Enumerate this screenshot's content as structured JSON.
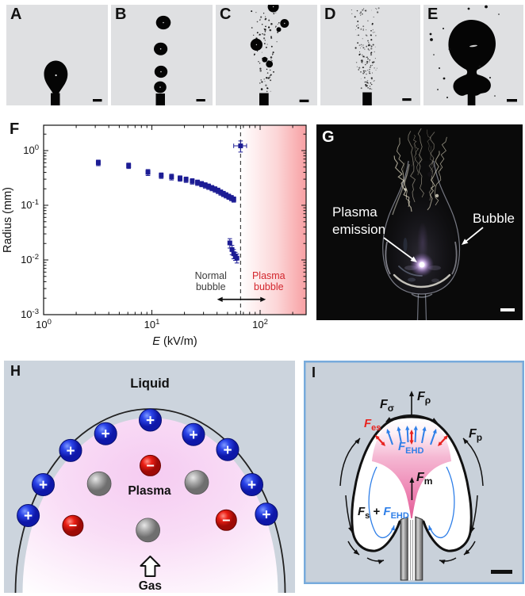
{
  "colors": {
    "photo_bg_gray": "#dfe0e2",
    "ink": "#000000",
    "navy_marker": "#1c1c94",
    "plasma_red": "#d3262d",
    "shade_red": "#ed1c24",
    "schematic_bg": "#ccd4dd",
    "panel_i_border": "#77abdc",
    "blue_charge": "#1733cc",
    "red_charge": "#dd1111",
    "gray_sphere": "#9a9a9a",
    "blue_arrow": "#2f7fe8",
    "pink_cone": "#e75e9f"
  },
  "panels": {
    "a": {
      "label": "A"
    },
    "b": {
      "label": "B"
    },
    "c": {
      "label": "C"
    },
    "d": {
      "label": "D"
    },
    "e": {
      "label": "E"
    },
    "f": {
      "label": "F"
    },
    "g": {
      "label": "G",
      "annotation_plasma_line1": "Plasma",
      "annotation_plasma_line2": "emission",
      "annotation_bubble": "Bubble"
    },
    "h": {
      "label": "H",
      "liquid_label": "Liquid",
      "plasma_label": "Plasma",
      "gas_label": "Gas",
      "plus_symbol": "+",
      "minus_symbol": "−"
    },
    "i": {
      "label": "I",
      "forces": {
        "f_rho": {
          "main": "F",
          "sub": "ρ",
          "color": "#111111"
        },
        "f_sigma": {
          "main": "F",
          "sub": "σ",
          "color": "#111111"
        },
        "f_es": {
          "main": "F",
          "sub": "es",
          "color": "#e8231f"
        },
        "f_ehd": {
          "main": "F",
          "sub": "EHD",
          "color": "#2f7fe8"
        },
        "f_p": {
          "main": "F",
          "sub": "p",
          "color": "#111111"
        },
        "f_m": {
          "main": "F",
          "sub": "m",
          "color": "#111111"
        },
        "f_s": {
          "main": "F",
          "sub": "s",
          "color": "#111111"
        },
        "plus_join": " + "
      }
    }
  },
  "chart_data": {
    "type": "scatter",
    "title": "",
    "xlabel_italic": "E",
    "xlabel_rest": " (kV/m)",
    "ylabel": "Radius (mm)",
    "xscale": "log",
    "yscale": "log",
    "xlim": [
      1,
      266
    ],
    "ylim": [
      0.001,
      2.9
    ],
    "x_tick_exponents": [
      0,
      1,
      2
    ],
    "y_tick_exponents": [
      0,
      -1,
      -2,
      -3
    ],
    "tick_base": "10",
    "series": [
      {
        "name": "normal-bubble-radius",
        "marker": "square",
        "color": "#1c1c94",
        "x": [
          3.2,
          6.1,
          9.2,
          12.2,
          15.2,
          18.2,
          20.7,
          23.6,
          26.4,
          28.8,
          31.1,
          33.4,
          35.9,
          38.3,
          40.8,
          43.3,
          45.8,
          48.4,
          51.3,
          54.3,
          57.1
        ],
        "y": [
          0.6,
          0.53,
          0.4,
          0.35,
          0.33,
          0.31,
          0.295,
          0.275,
          0.26,
          0.245,
          0.232,
          0.22,
          0.207,
          0.196,
          0.185,
          0.172,
          0.162,
          0.153,
          0.144,
          0.136,
          0.128
        ],
        "yerr": [
          0.07,
          0.06,
          0.05,
          0.04,
          0.04,
          0.035,
          0.033,
          0.031,
          0.029,
          0.027,
          0.026,
          0.025,
          0.023,
          0.022,
          0.021,
          0.019,
          0.018,
          0.017,
          0.016,
          0.015,
          0.014
        ]
      },
      {
        "name": "microbubble-cluster",
        "marker": "square",
        "color": "#1c1c94",
        "x": [
          52.5,
          55,
          57,
          59,
          61
        ],
        "y": [
          0.0205,
          0.0155,
          0.013,
          0.0118,
          0.0108
        ],
        "yerr": [
          0.004,
          0.003,
          0.0025,
          0.002,
          0.002
        ]
      },
      {
        "name": "plasma-bubble-point",
        "marker": "square",
        "color": "#1c1c94",
        "x": [
          66
        ],
        "y": [
          1.22
        ],
        "xerr": [
          9
        ],
        "yerr": [
          0.28
        ]
      }
    ],
    "vline": {
      "x": 66,
      "style": "dashed",
      "color": "#333333"
    },
    "shaded_region": {
      "from": 66,
      "to": 266,
      "color": "#ed1c24",
      "gradient": "left-transparent-to-right"
    },
    "annotations": [
      {
        "name": "normal-bubble",
        "line1": "Normal",
        "line2": "bubble",
        "x": 35,
        "y_line1": 0.0045,
        "y_line2": 0.0028,
        "color": "#3c3c3c"
      },
      {
        "name": "plasma-bubble",
        "line1": "Plasma",
        "line2": "bubble",
        "x": 120,
        "y_line1": 0.0045,
        "y_line2": 0.0028,
        "color": "#d3262d"
      }
    ],
    "double_arrow": {
      "from_x": 40,
      "to_x": 113,
      "y": 0.0019,
      "color": "#111111"
    }
  }
}
